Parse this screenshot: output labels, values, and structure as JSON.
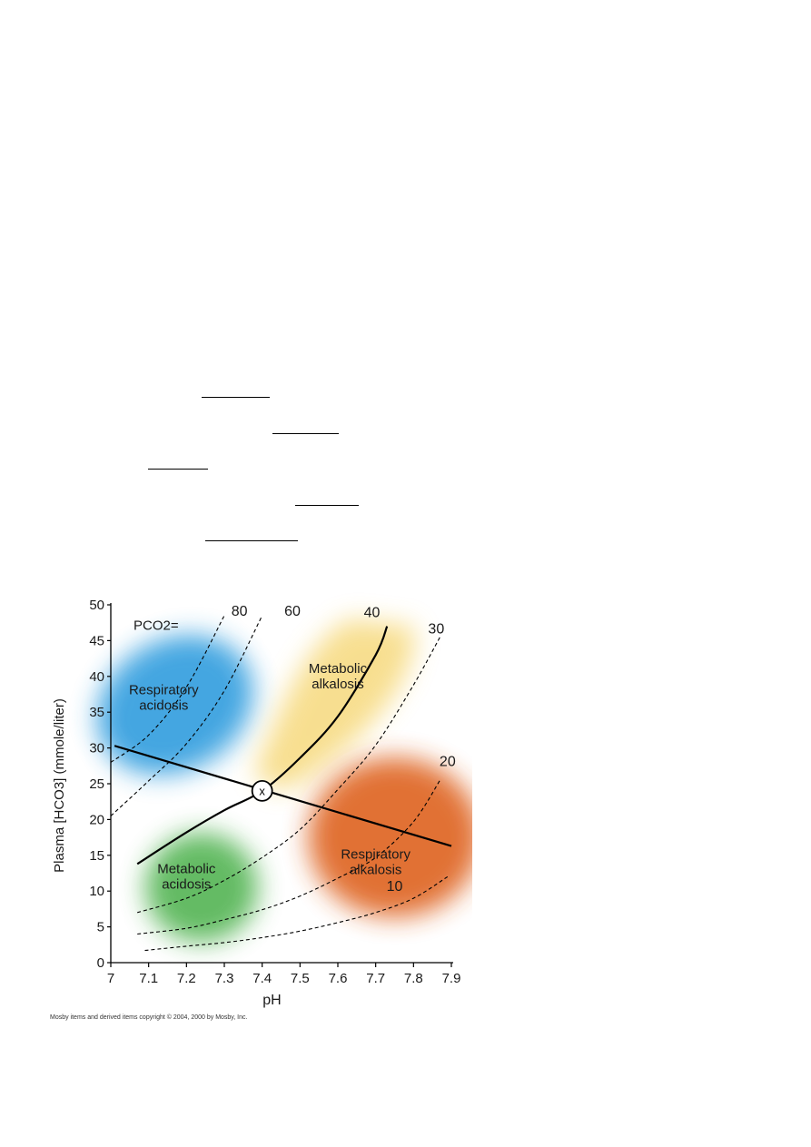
{
  "chart_data": {
    "type": "line",
    "xlabel": "pH",
    "ylabel": "Plasma [HCO3] (mmole/liter)",
    "xlim": [
      7.0,
      7.9
    ],
    "ylim": [
      0,
      50
    ],
    "x_ticks": [
      "7",
      "7.1",
      "7.2",
      "7.3",
      "7.4",
      "7.5",
      "7.6",
      "7.7",
      "7.8",
      "7.9"
    ],
    "y_ticks": [
      "0",
      "5",
      "10",
      "15",
      "20",
      "25",
      "30",
      "35",
      "40",
      "45",
      "50"
    ],
    "pco2_label": "PCO2=",
    "isobars": [
      {
        "name": "80",
        "points": [
          [
            7.0,
            28.0
          ],
          [
            7.1,
            31.8
          ],
          [
            7.2,
            38.5
          ],
          [
            7.3,
            48.5
          ]
        ]
      },
      {
        "name": "60",
        "points": [
          [
            7.0,
            20.5
          ],
          [
            7.1,
            25.4
          ],
          [
            7.2,
            30.6
          ],
          [
            7.3,
            38.0
          ],
          [
            7.4,
            48.5
          ]
        ]
      },
      {
        "name": "40",
        "points": [
          [
            7.07,
            13.8
          ],
          [
            7.2,
            18.2
          ],
          [
            7.3,
            21.3
          ],
          [
            7.4,
            24.0
          ],
          [
            7.5,
            28.6
          ],
          [
            7.6,
            34.4
          ],
          [
            7.7,
            43.0
          ],
          [
            7.73,
            47.0
          ]
        ]
      },
      {
        "name": "30",
        "points": [
          [
            7.07,
            7.0
          ],
          [
            7.2,
            9.0
          ],
          [
            7.3,
            11.5
          ],
          [
            7.4,
            14.7
          ],
          [
            7.5,
            18.6
          ],
          [
            7.6,
            24.2
          ],
          [
            7.7,
            30.4
          ],
          [
            7.8,
            38.8
          ],
          [
            7.87,
            45.5
          ]
        ]
      },
      {
        "name": "20",
        "points": [
          [
            7.07,
            4.0
          ],
          [
            7.2,
            4.8
          ],
          [
            7.3,
            6.0
          ],
          [
            7.4,
            7.4
          ],
          [
            7.5,
            9.3
          ],
          [
            7.6,
            11.8
          ],
          [
            7.7,
            14.7
          ],
          [
            7.8,
            19.7
          ],
          [
            7.87,
            25.5
          ]
        ]
      },
      {
        "name": "10",
        "points": [
          [
            7.09,
            1.7
          ],
          [
            7.2,
            2.3
          ],
          [
            7.3,
            2.8
          ],
          [
            7.4,
            3.5
          ],
          [
            7.5,
            4.4
          ],
          [
            7.6,
            5.6
          ],
          [
            7.7,
            7.0
          ],
          [
            7.8,
            9.0
          ],
          [
            7.89,
            12.0
          ]
        ]
      }
    ],
    "buffer_line": {
      "points": [
        [
          7.01,
          30.3
        ],
        [
          7.9,
          16.3
        ]
      ]
    },
    "normal_point": {
      "label": "x",
      "x": 7.4,
      "y": 24
    },
    "regions": [
      {
        "name": "Respiratory acidosis",
        "lines": [
          "Respiratory",
          "acidosis"
        ],
        "color": "#3aa2e0"
      },
      {
        "name": "Metabolic alkalosis",
        "lines": [
          "Metabolic",
          "alkalosis"
        ],
        "color": "#f6d775"
      },
      {
        "name": "Metabolic acidosis",
        "lines": [
          "Metabolic",
          "acidosis"
        ],
        "color": "#5cb85c"
      },
      {
        "name": "Respiratory alkalosis",
        "lines": [
          "Respiratory",
          "alkalosis"
        ],
        "color": "#e06a2c"
      }
    ]
  },
  "footer": {
    "copyright": "Mosby items and derived items copyright © 2004, 2000 by Mosby, Inc."
  }
}
